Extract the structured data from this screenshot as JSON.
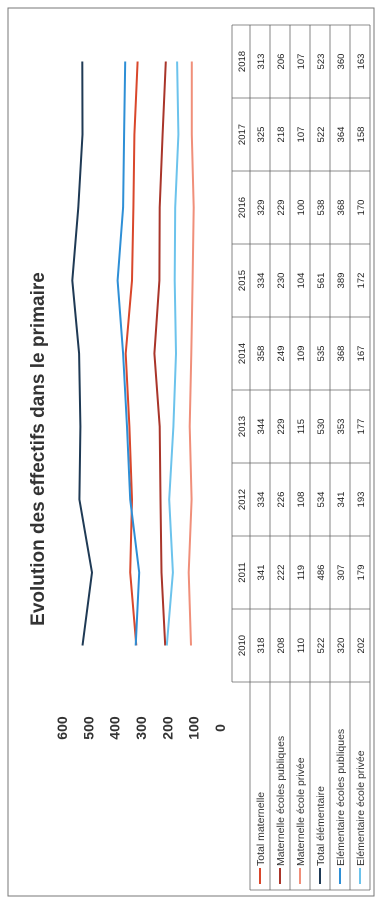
{
  "chart_data": {
    "type": "line",
    "title": "Evolution des effectifs dans le primaire",
    "xlabel": "",
    "ylabel": "",
    "ylim": [
      0,
      600
    ],
    "yticks": [
      0,
      100,
      200,
      300,
      400,
      500,
      600
    ],
    "categories": [
      "2010",
      "2011",
      "2012",
      "2013",
      "2014",
      "2015",
      "2016",
      "2017",
      "2018"
    ],
    "grid": false,
    "legend": "data-table",
    "series": [
      {
        "name": "Total maternelle",
        "color": "#d9472b",
        "values": [
          318,
          341,
          334,
          344,
          358,
          334,
          329,
          325,
          313
        ]
      },
      {
        "name": "Maternelle écoles publiques",
        "color": "#a9352a",
        "values": [
          208,
          222,
          226,
          229,
          249,
          230,
          229,
          218,
          206
        ]
      },
      {
        "name": "Maternelle école privée",
        "color": "#f08f7a",
        "values": [
          110,
          119,
          108,
          115,
          109,
          104,
          100,
          107,
          107
        ]
      },
      {
        "name": "Total élémentaire",
        "color": "#1f3a55",
        "values": [
          522,
          486,
          534,
          530,
          535,
          561,
          538,
          522,
          523
        ]
      },
      {
        "name": "Elémentaire écoles publiques",
        "color": "#2e8fd6",
        "values": [
          320,
          307,
          341,
          353,
          368,
          389,
          368,
          364,
          360
        ]
      },
      {
        "name": "Elémentaire école privée",
        "color": "#6cc3ec",
        "values": [
          202,
          179,
          193,
          177,
          167,
          172,
          170,
          158,
          163
        ]
      }
    ]
  }
}
